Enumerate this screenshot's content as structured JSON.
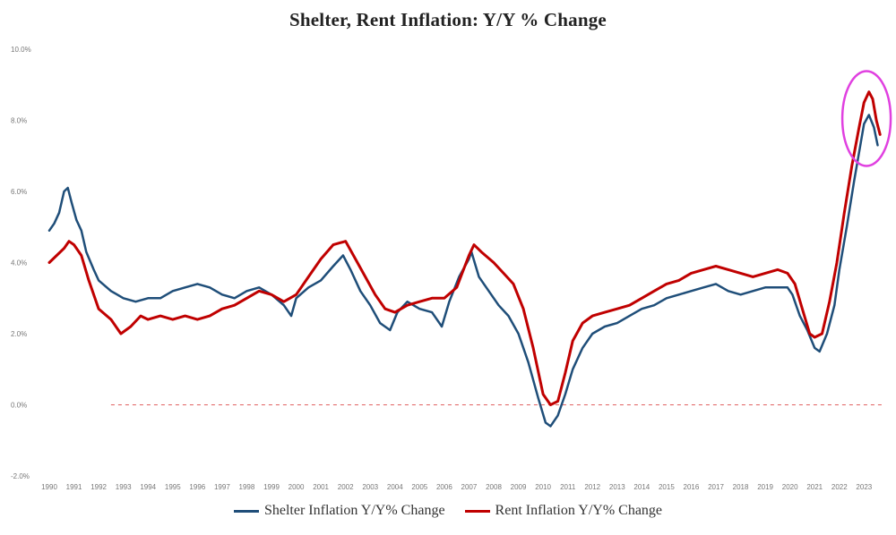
{
  "chart_data": {
    "type": "line",
    "title": "Shelter, Rent Inflation: Y/Y % Change",
    "xlabel": "",
    "ylabel": "",
    "ylim": [
      -2,
      10
    ],
    "yticks": [
      "-2.0%",
      "0.0%",
      "2.0%",
      "4.0%",
      "6.0%",
      "8.0%",
      "10.0%"
    ],
    "ytick_values": [
      -2,
      0,
      2,
      4,
      6,
      8,
      10
    ],
    "xlim": [
      1990,
      2023.75
    ],
    "xticks": [
      "1990",
      "1991",
      "1992",
      "1993",
      "1994",
      "1995",
      "1996",
      "1997",
      "1998",
      "1999",
      "2000",
      "2001",
      "2002",
      "2003",
      "2004",
      "2005",
      "2006",
      "2007",
      "2008",
      "2009",
      "2010",
      "2011",
      "2012",
      "2013",
      "2014",
      "2015",
      "2016",
      "2017",
      "2018",
      "2019",
      "2020",
      "2021",
      "2022",
      "2023"
    ],
    "zero_line": {
      "value": 0,
      "style": "dashed",
      "color": "#e06060"
    },
    "annotation": {
      "shape": "circle",
      "color": "#e040e0",
      "x": 2023.1,
      "y": 8.05
    },
    "series": [
      {
        "name": "Shelter Inflation Y/Y% Change",
        "color": "#1f4e79",
        "points": [
          [
            1990.0,
            4.9
          ],
          [
            1990.2,
            5.1
          ],
          [
            1990.4,
            5.4
          ],
          [
            1990.6,
            6.0
          ],
          [
            1990.75,
            6.1
          ],
          [
            1990.9,
            5.7
          ],
          [
            1991.1,
            5.2
          ],
          [
            1991.3,
            4.9
          ],
          [
            1991.5,
            4.3
          ],
          [
            1991.8,
            3.8
          ],
          [
            1992.0,
            3.5
          ],
          [
            1992.5,
            3.2
          ],
          [
            1993.0,
            3.0
          ],
          [
            1993.5,
            2.9
          ],
          [
            1994.0,
            3.0
          ],
          [
            1994.5,
            3.0
          ],
          [
            1995.0,
            3.2
          ],
          [
            1995.5,
            3.3
          ],
          [
            1996.0,
            3.4
          ],
          [
            1996.5,
            3.3
          ],
          [
            1997.0,
            3.1
          ],
          [
            1997.5,
            3.0
          ],
          [
            1998.0,
            3.2
          ],
          [
            1998.5,
            3.3
          ],
          [
            1999.0,
            3.1
          ],
          [
            1999.5,
            2.8
          ],
          [
            1999.8,
            2.5
          ],
          [
            2000.0,
            3.0
          ],
          [
            2000.5,
            3.3
          ],
          [
            2001.0,
            3.5
          ],
          [
            2001.5,
            3.9
          ],
          [
            2001.9,
            4.2
          ],
          [
            2002.2,
            3.8
          ],
          [
            2002.6,
            3.2
          ],
          [
            2003.0,
            2.8
          ],
          [
            2003.4,
            2.3
          ],
          [
            2003.8,
            2.1
          ],
          [
            2004.1,
            2.6
          ],
          [
            2004.5,
            2.9
          ],
          [
            2005.0,
            2.7
          ],
          [
            2005.5,
            2.6
          ],
          [
            2005.9,
            2.2
          ],
          [
            2006.2,
            2.9
          ],
          [
            2006.6,
            3.6
          ],
          [
            2007.0,
            4.1
          ],
          [
            2007.1,
            4.3
          ],
          [
            2007.4,
            3.6
          ],
          [
            2007.8,
            3.2
          ],
          [
            2008.2,
            2.8
          ],
          [
            2008.6,
            2.5
          ],
          [
            2009.0,
            2.0
          ],
          [
            2009.4,
            1.2
          ],
          [
            2009.8,
            0.2
          ],
          [
            2010.1,
            -0.5
          ],
          [
            2010.3,
            -0.6
          ],
          [
            2010.6,
            -0.3
          ],
          [
            2010.9,
            0.3
          ],
          [
            2011.2,
            1.0
          ],
          [
            2011.6,
            1.6
          ],
          [
            2012.0,
            2.0
          ],
          [
            2012.5,
            2.2
          ],
          [
            2013.0,
            2.3
          ],
          [
            2013.5,
            2.5
          ],
          [
            2014.0,
            2.7
          ],
          [
            2014.5,
            2.8
          ],
          [
            2015.0,
            3.0
          ],
          [
            2015.5,
            3.1
          ],
          [
            2016.0,
            3.2
          ],
          [
            2016.5,
            3.3
          ],
          [
            2017.0,
            3.4
          ],
          [
            2017.5,
            3.2
          ],
          [
            2018.0,
            3.1
          ],
          [
            2018.5,
            3.2
          ],
          [
            2019.0,
            3.3
          ],
          [
            2019.5,
            3.3
          ],
          [
            2019.9,
            3.3
          ],
          [
            2020.1,
            3.1
          ],
          [
            2020.4,
            2.5
          ],
          [
            2020.7,
            2.1
          ],
          [
            2021.0,
            1.6
          ],
          [
            2021.2,
            1.5
          ],
          [
            2021.5,
            2.0
          ],
          [
            2021.8,
            2.8
          ],
          [
            2022.0,
            3.8
          ],
          [
            2022.3,
            5.0
          ],
          [
            2022.6,
            6.3
          ],
          [
            2022.85,
            7.3
          ],
          [
            2023.0,
            7.9
          ],
          [
            2023.2,
            8.15
          ],
          [
            2023.4,
            7.8
          ],
          [
            2023.55,
            7.3
          ]
        ]
      },
      {
        "name": "Rent Inflation Y/Y% Change",
        "color": "#c00000",
        "points": [
          [
            1990.0,
            4.0
          ],
          [
            1990.3,
            4.2
          ],
          [
            1990.6,
            4.4
          ],
          [
            1990.8,
            4.6
          ],
          [
            1991.0,
            4.5
          ],
          [
            1991.3,
            4.2
          ],
          [
            1991.6,
            3.5
          ],
          [
            1992.0,
            2.7
          ],
          [
            1992.5,
            2.4
          ],
          [
            1992.9,
            2.0
          ],
          [
            1993.3,
            2.2
          ],
          [
            1993.7,
            2.5
          ],
          [
            1994.0,
            2.4
          ],
          [
            1994.5,
            2.5
          ],
          [
            1995.0,
            2.4
          ],
          [
            1995.5,
            2.5
          ],
          [
            1996.0,
            2.4
          ],
          [
            1996.5,
            2.5
          ],
          [
            1997.0,
            2.7
          ],
          [
            1997.5,
            2.8
          ],
          [
            1998.0,
            3.0
          ],
          [
            1998.5,
            3.2
          ],
          [
            1999.0,
            3.1
          ],
          [
            1999.5,
            2.9
          ],
          [
            2000.0,
            3.1
          ],
          [
            2000.5,
            3.6
          ],
          [
            2001.0,
            4.1
          ],
          [
            2001.5,
            4.5
          ],
          [
            2002.0,
            4.6
          ],
          [
            2002.4,
            4.1
          ],
          [
            2002.8,
            3.6
          ],
          [
            2003.2,
            3.1
          ],
          [
            2003.6,
            2.7
          ],
          [
            2004.0,
            2.6
          ],
          [
            2004.5,
            2.8
          ],
          [
            2005.0,
            2.9
          ],
          [
            2005.5,
            3.0
          ],
          [
            2006.0,
            3.0
          ],
          [
            2006.5,
            3.3
          ],
          [
            2007.0,
            4.2
          ],
          [
            2007.2,
            4.5
          ],
          [
            2007.5,
            4.3
          ],
          [
            2008.0,
            4.0
          ],
          [
            2008.4,
            3.7
          ],
          [
            2008.8,
            3.4
          ],
          [
            2009.2,
            2.7
          ],
          [
            2009.6,
            1.6
          ],
          [
            2010.0,
            0.3
          ],
          [
            2010.3,
            0.0
          ],
          [
            2010.6,
            0.1
          ],
          [
            2010.9,
            0.9
          ],
          [
            2011.2,
            1.8
          ],
          [
            2011.6,
            2.3
          ],
          [
            2012.0,
            2.5
          ],
          [
            2012.5,
            2.6
          ],
          [
            2013.0,
            2.7
          ],
          [
            2013.5,
            2.8
          ],
          [
            2014.0,
            3.0
          ],
          [
            2014.5,
            3.2
          ],
          [
            2015.0,
            3.4
          ],
          [
            2015.5,
            3.5
          ],
          [
            2016.0,
            3.7
          ],
          [
            2016.5,
            3.8
          ],
          [
            2017.0,
            3.9
          ],
          [
            2017.5,
            3.8
          ],
          [
            2018.0,
            3.7
          ],
          [
            2018.5,
            3.6
          ],
          [
            2019.0,
            3.7
          ],
          [
            2019.5,
            3.8
          ],
          [
            2019.9,
            3.7
          ],
          [
            2020.2,
            3.4
          ],
          [
            2020.5,
            2.7
          ],
          [
            2020.8,
            2.0
          ],
          [
            2021.0,
            1.9
          ],
          [
            2021.3,
            2.0
          ],
          [
            2021.6,
            2.9
          ],
          [
            2021.9,
            4.0
          ],
          [
            2022.2,
            5.4
          ],
          [
            2022.5,
            6.7
          ],
          [
            2022.8,
            7.8
          ],
          [
            2023.0,
            8.5
          ],
          [
            2023.2,
            8.8
          ],
          [
            2023.35,
            8.6
          ],
          [
            2023.5,
            8.0
          ],
          [
            2023.65,
            7.6
          ]
        ]
      }
    ]
  },
  "legend": [
    {
      "label": "Shelter Inflation Y/Y% Change",
      "color": "#1f4e79"
    },
    {
      "label": "Rent Inflation Y/Y% Change",
      "color": "#c00000"
    }
  ]
}
